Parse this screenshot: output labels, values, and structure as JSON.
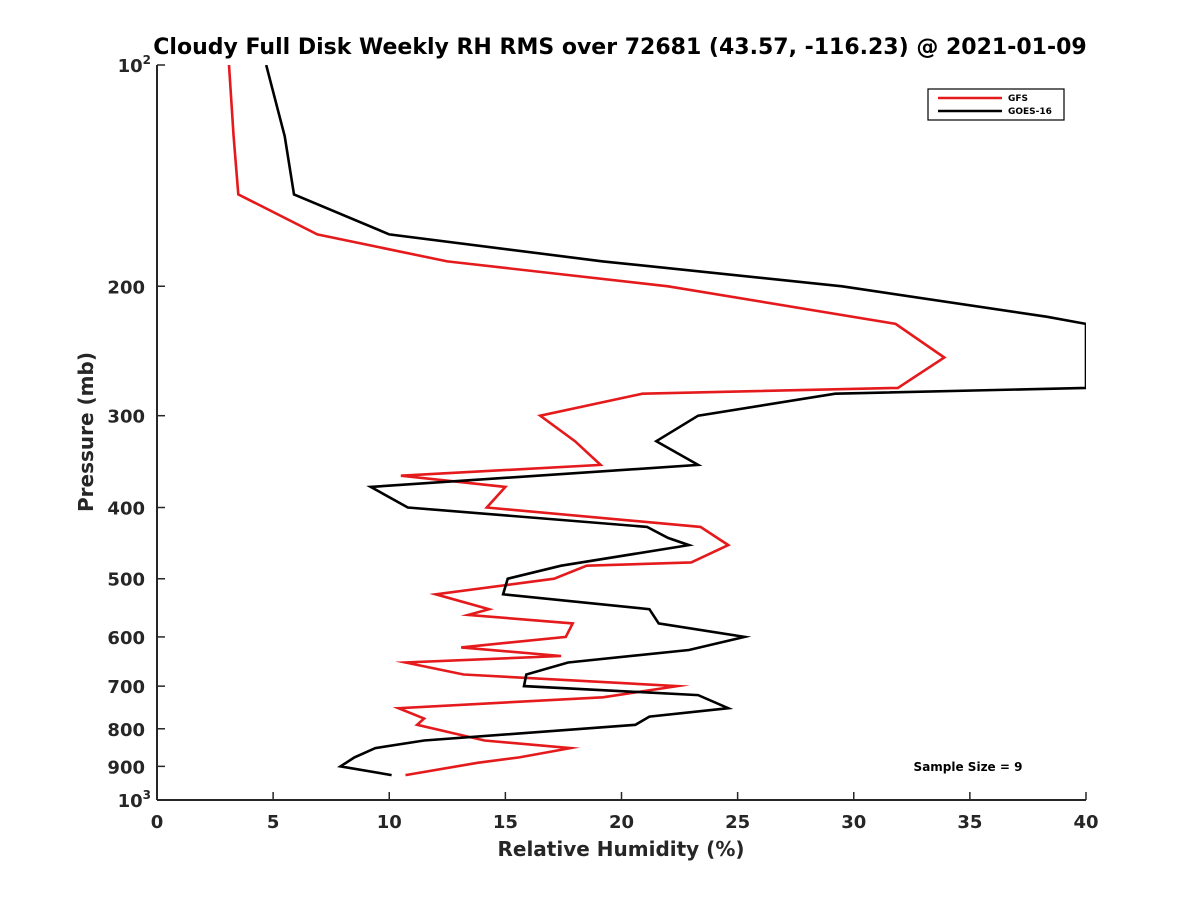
{
  "chart_data": {
    "type": "line",
    "title": "Cloudy Full Disk Weekly RH RMS over 72681 (43.57, -116.23) @ 2021-01-09",
    "xlabel": "Relative Humidity (%)",
    "ylabel": "Pressure (mb)",
    "xlim": [
      0,
      40
    ],
    "ylim": [
      100,
      1000
    ],
    "yscale": "log",
    "y_reversed": true,
    "grid": false,
    "legend_position": "top-right",
    "x_ticks": [
      "0",
      "5",
      "10",
      "15",
      "20",
      "25",
      "30",
      "35",
      "40"
    ],
    "y_ticks": [
      {
        "value": 100,
        "base": "10",
        "exp": "2"
      },
      {
        "value": 200,
        "label": "200"
      },
      {
        "value": 300,
        "label": "300"
      },
      {
        "value": 400,
        "label": "400"
      },
      {
        "value": 500,
        "label": "500"
      },
      {
        "value": 600,
        "label": "600"
      },
      {
        "value": 700,
        "label": "700"
      },
      {
        "value": 800,
        "label": "800"
      },
      {
        "value": 900,
        "label": "900"
      },
      {
        "value": 1000,
        "base": "10",
        "exp": "3"
      }
    ],
    "series": [
      {
        "name": "GFS",
        "color": "#e41a1c",
        "points": [
          [
            3.1,
            100
          ],
          [
            3.3,
            125
          ],
          [
            3.5,
            150
          ],
          [
            6.9,
            170
          ],
          [
            12.5,
            185
          ],
          [
            22.0,
            200
          ],
          [
            31.8,
            225
          ],
          [
            33.9,
            250
          ],
          [
            31.9,
            275
          ],
          [
            20.9,
            280
          ],
          [
            16.5,
            300
          ],
          [
            18.0,
            325
          ],
          [
            19.1,
            350
          ],
          [
            10.5,
            362
          ],
          [
            15.0,
            375
          ],
          [
            14.2,
            400
          ],
          [
            23.4,
            425
          ],
          [
            24.6,
            450
          ],
          [
            23.0,
            475
          ],
          [
            18.5,
            480
          ],
          [
            17.1,
            500
          ],
          [
            12.0,
            525
          ],
          [
            14.3,
            550
          ],
          [
            13.4,
            560
          ],
          [
            17.9,
            575
          ],
          [
            17.6,
            600
          ],
          [
            13.1,
            620
          ],
          [
            17.4,
            637
          ],
          [
            10.7,
            650
          ],
          [
            13.2,
            675
          ],
          [
            22.4,
            700
          ],
          [
            19.2,
            725
          ],
          [
            10.4,
            750
          ],
          [
            11.5,
            775
          ],
          [
            11.2,
            790
          ],
          [
            14.1,
            830
          ],
          [
            17.8,
            850
          ],
          [
            15.6,
            875
          ],
          [
            13.8,
            890
          ],
          [
            10.7,
            925
          ]
        ]
      },
      {
        "name": "GOES-16",
        "color": "#000000",
        "points": [
          [
            4.7,
            100
          ],
          [
            5.5,
            125
          ],
          [
            5.9,
            150
          ],
          [
            10.0,
            170
          ],
          [
            19.2,
            185
          ],
          [
            29.5,
            200
          ],
          [
            38.3,
            220
          ],
          [
            40.0,
            225
          ],
          [
            40.0,
            275
          ],
          [
            29.2,
            280
          ],
          [
            23.3,
            300
          ],
          [
            21.5,
            325
          ],
          [
            23.3,
            350
          ],
          [
            9.2,
            375
          ],
          [
            10.8,
            400
          ],
          [
            21.1,
            425
          ],
          [
            22.0,
            440
          ],
          [
            22.9,
            450
          ],
          [
            17.4,
            480
          ],
          [
            15.1,
            500
          ],
          [
            14.9,
            525
          ],
          [
            21.2,
            550
          ],
          [
            21.6,
            575
          ],
          [
            25.3,
            600
          ],
          [
            22.9,
            625
          ],
          [
            17.7,
            650
          ],
          [
            15.9,
            675
          ],
          [
            15.8,
            700
          ],
          [
            23.3,
            720
          ],
          [
            24.6,
            750
          ],
          [
            21.2,
            770
          ],
          [
            20.6,
            790
          ],
          [
            11.5,
            830
          ],
          [
            9.4,
            850
          ],
          [
            8.5,
            875
          ],
          [
            7.9,
            900
          ],
          [
            10.1,
            925
          ]
        ]
      }
    ],
    "annotation": "Sample Size = 9"
  }
}
